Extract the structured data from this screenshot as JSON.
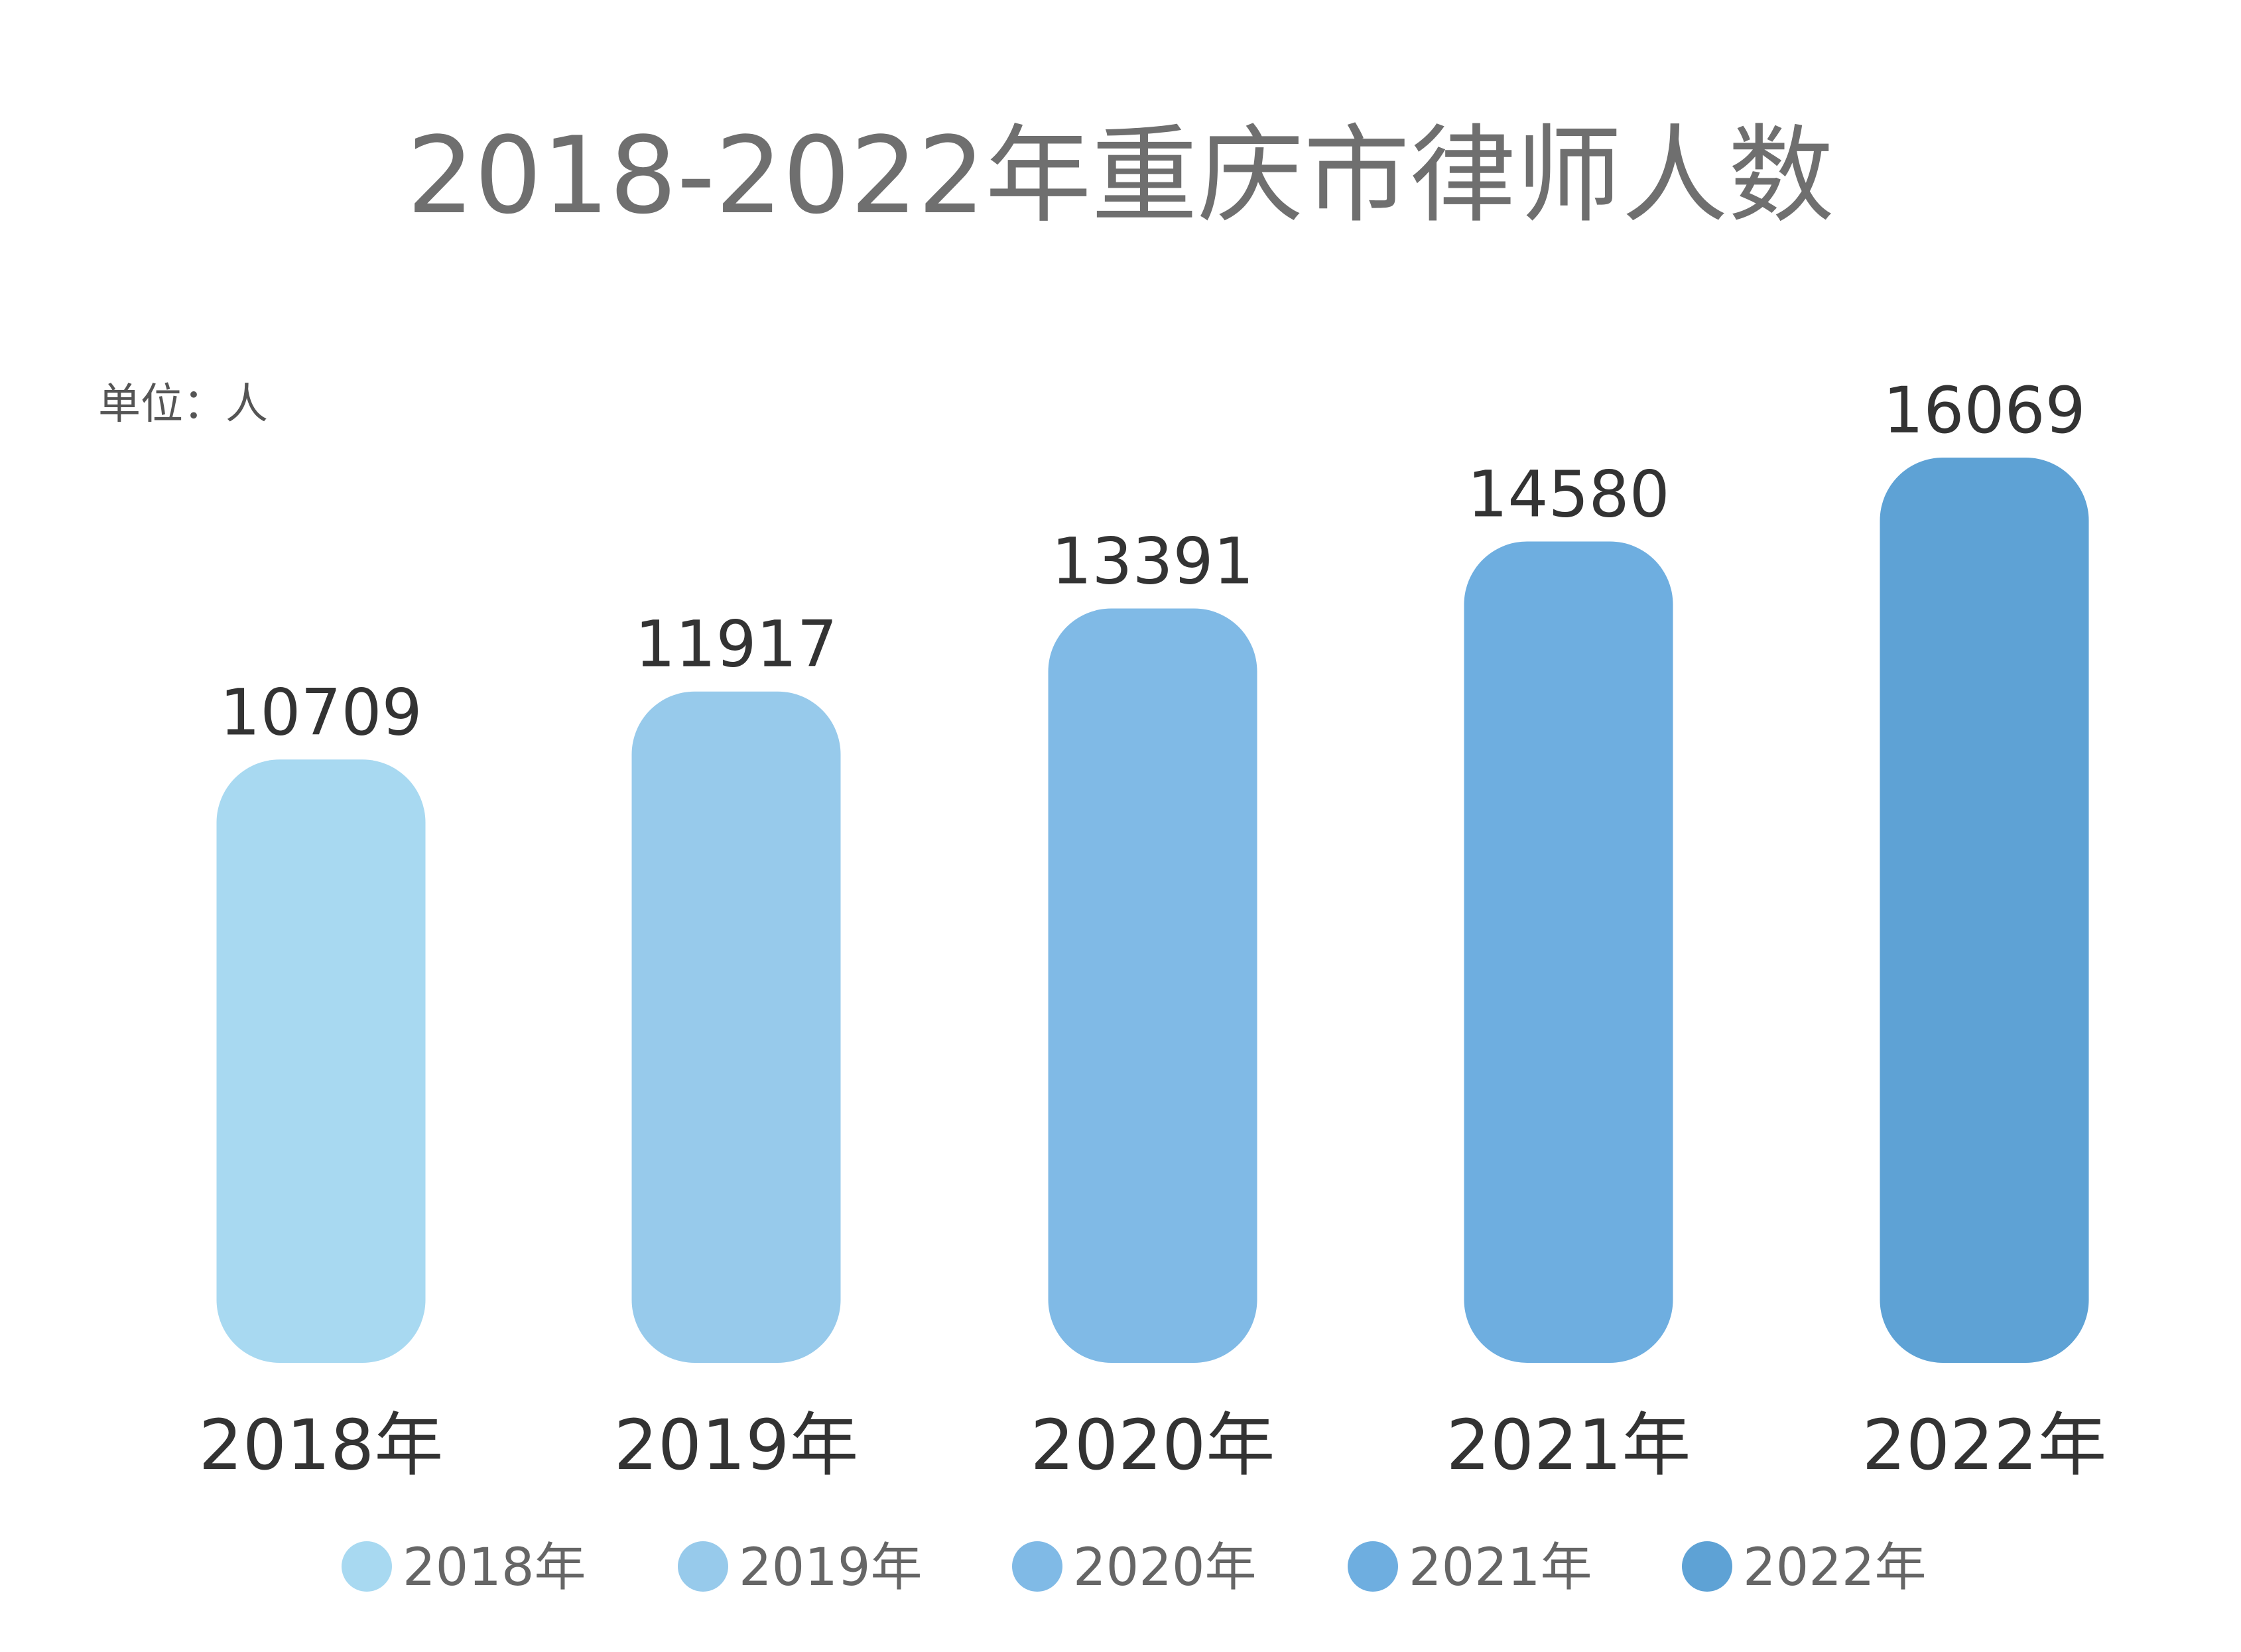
{
  "chart_data": {
    "type": "bar",
    "title": "2018-2022年重庆市律师人数",
    "unit_label": "单位：人",
    "xlabel": "",
    "ylabel": "",
    "categories": [
      "2018年",
      "2019年",
      "2020年",
      "2021年",
      "2022年"
    ],
    "values": [
      10709,
      11917,
      13391,
      14580,
      16069
    ],
    "ylim": [
      0,
      16069
    ],
    "grid": false,
    "legend_position": "bottom",
    "colors": [
      "#a8d9f1",
      "#97caeb",
      "#80bae6",
      "#6eaee0",
      "#5ea2d5"
    ],
    "data_labels": [
      "10709",
      "11917",
      "13391",
      "14580",
      "16069"
    ],
    "legend": [
      "2018年",
      "2019年",
      "2020年",
      "2021年",
      "2022年"
    ]
  }
}
